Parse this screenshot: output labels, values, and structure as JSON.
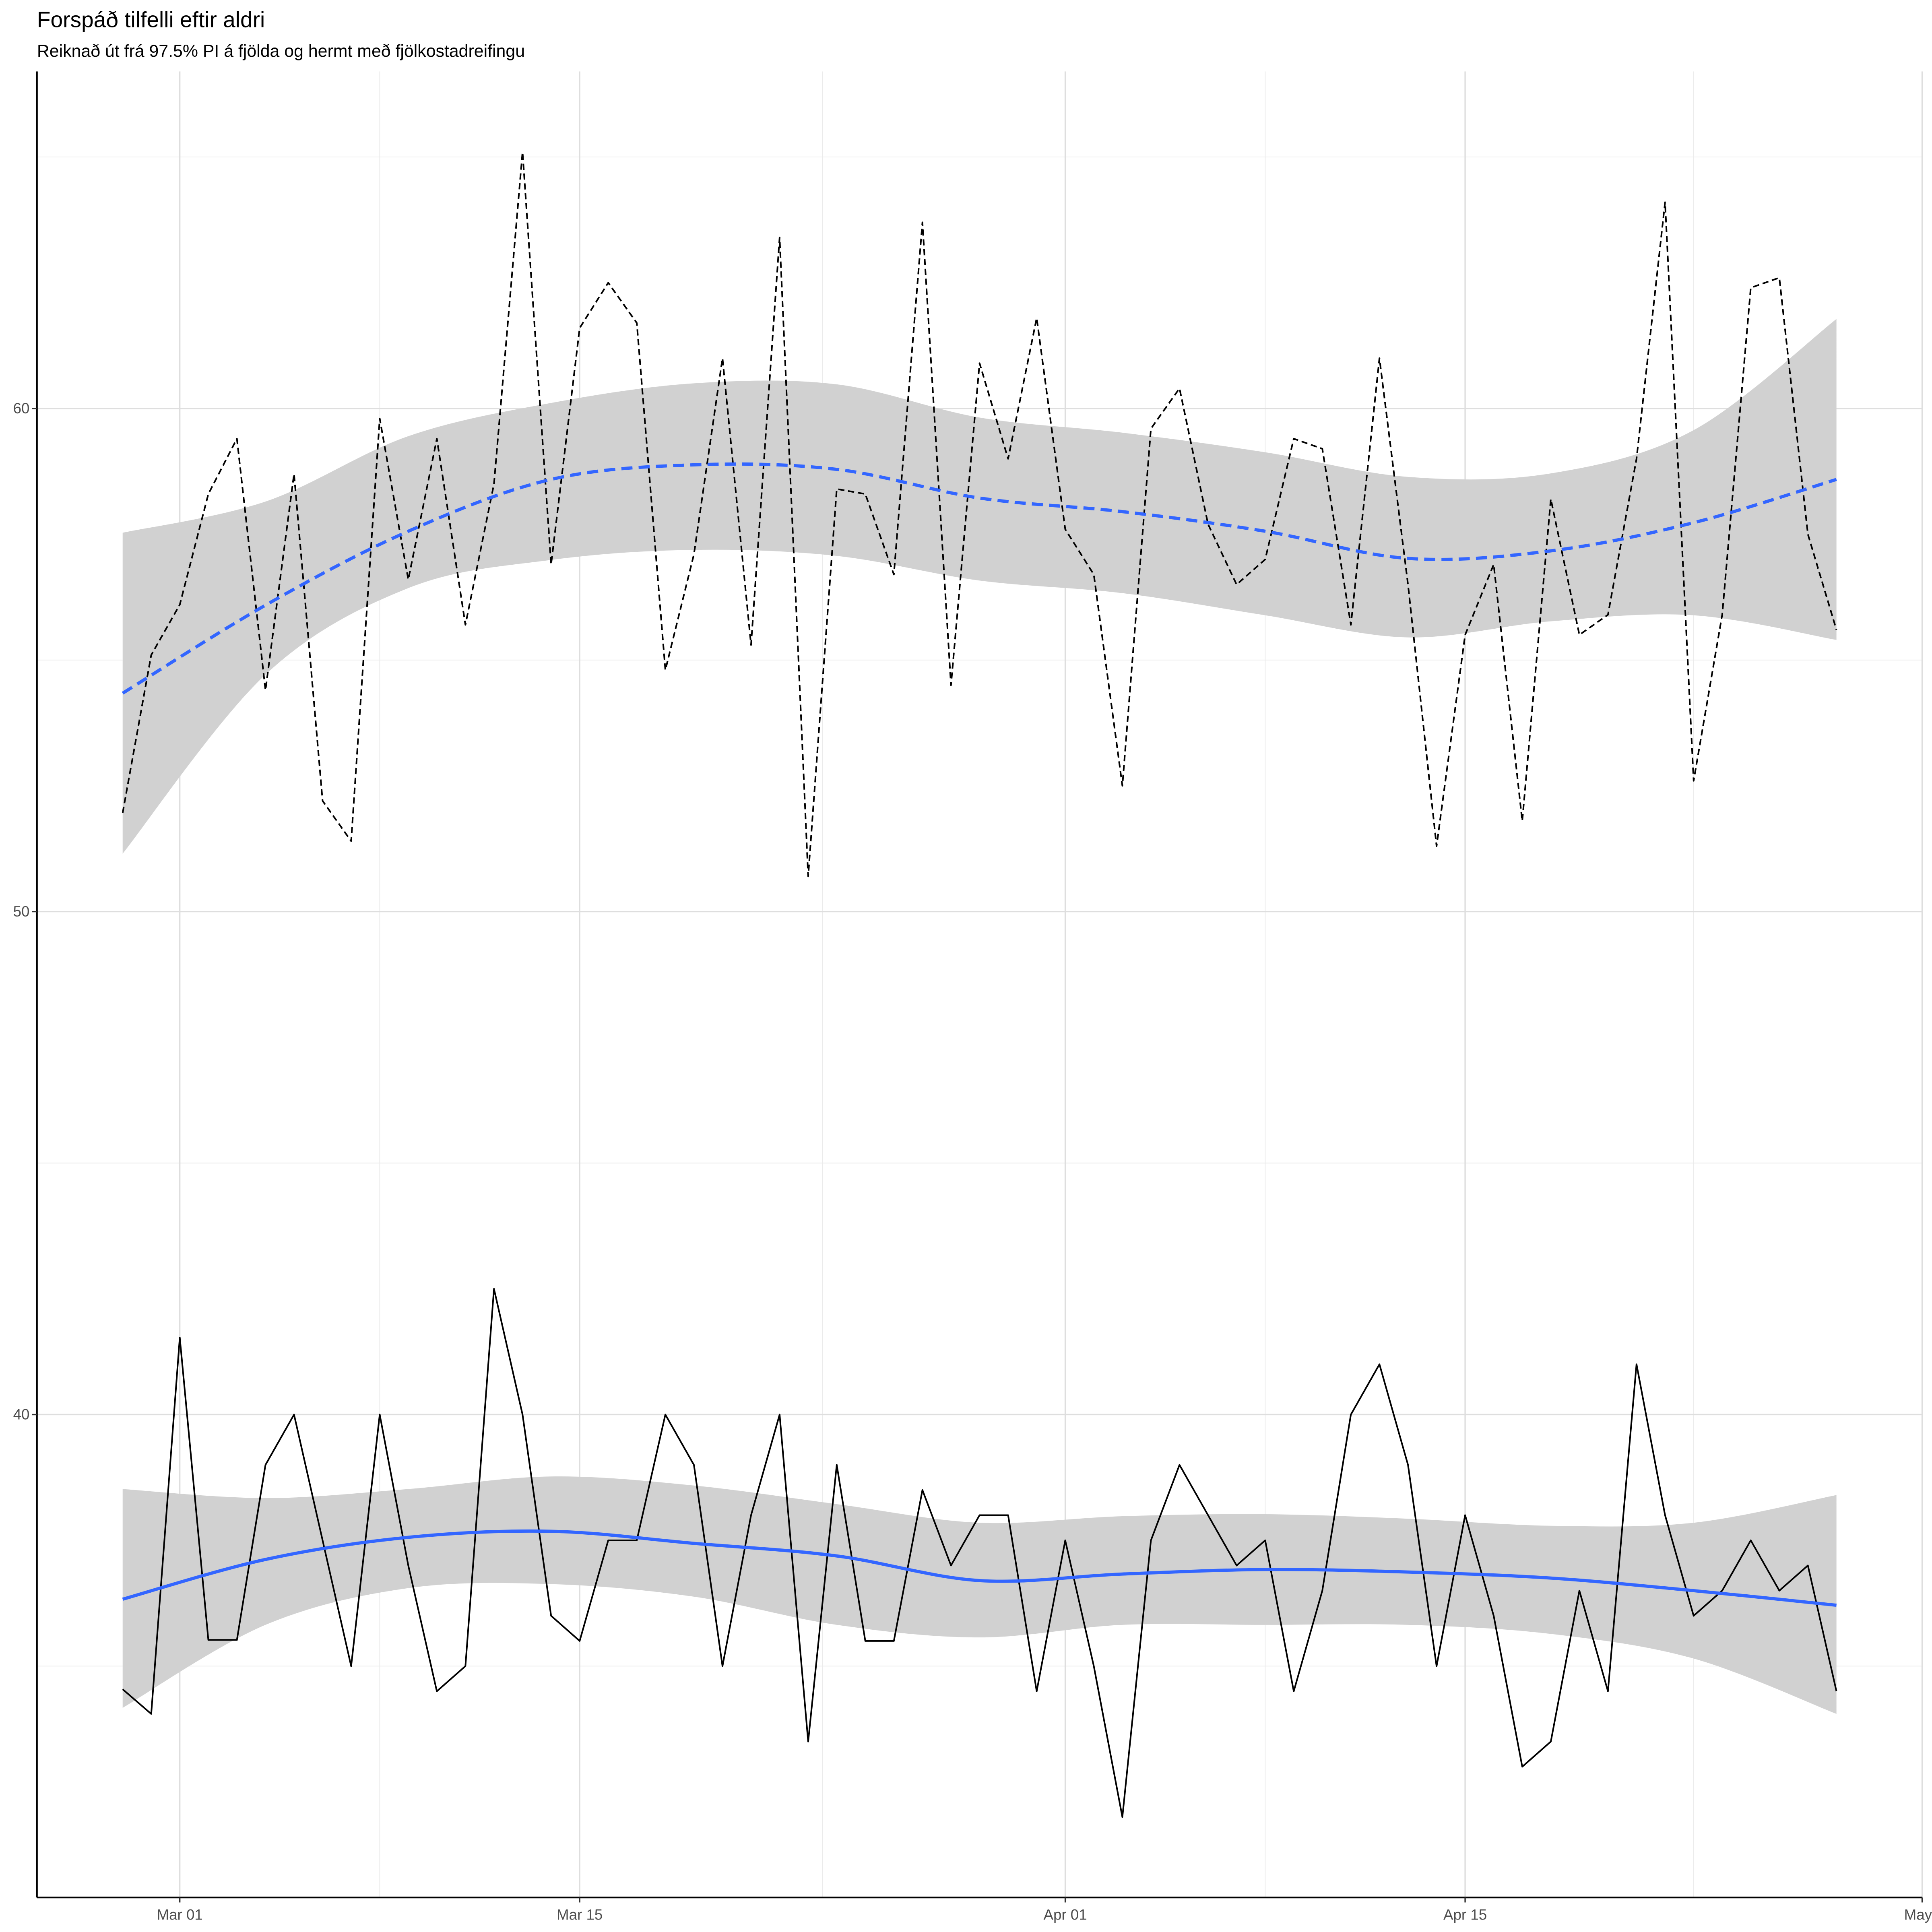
{
  "chart_data": {
    "type": "line",
    "title": "Forspáð tilfelli eftir aldri",
    "subtitle": "Reiknað út frá 97.5% PI á fjölda og hermt með fjölkostadreifingu",
    "xlim": [
      "02-24",
      "05-01"
    ],
    "xticks": [
      {
        "value": "03-01",
        "label": "Mar 01"
      },
      {
        "value": "03-15",
        "label": "Mar 15"
      },
      {
        "value": "04-01",
        "label": "Apr 01"
      },
      {
        "value": "04-15",
        "label": "Apr 15"
      },
      {
        "value": "05-01",
        "label": "May"
      }
    ],
    "ylim": [
      30.4,
      66.7
    ],
    "yticks": [
      40,
      50,
      60
    ],
    "grid": true,
    "series": [
      {
        "color": "#000000",
        "dash": true,
        "x": [
          "02-27",
          "02-28",
          "03-01",
          "03-02",
          "03-03",
          "03-04",
          "03-05",
          "03-06",
          "03-07",
          "03-08",
          "03-09",
          "03-10",
          "03-11",
          "03-12",
          "03-13",
          "03-14",
          "03-15",
          "03-16",
          "03-17",
          "03-18",
          "03-19",
          "03-20",
          "03-21",
          "03-22",
          "03-23",
          "03-24",
          "03-25",
          "03-26",
          "03-27",
          "03-28",
          "03-29",
          "03-30",
          "03-31",
          "04-01",
          "04-02",
          "04-03",
          "04-04",
          "04-05",
          "04-06",
          "04-07",
          "04-08",
          "04-09",
          "04-10",
          "04-11",
          "04-12",
          "04-13",
          "04-14",
          "04-15",
          "04-16",
          "04-17",
          "04-18",
          "04-19",
          "04-20",
          "04-21",
          "04-22",
          "04-23",
          "04-24",
          "04-25",
          "04-26",
          "04-27",
          "04-28"
        ],
        "values": [
          51.96,
          55.1,
          56.1,
          58.3,
          59.4,
          54.4,
          58.7,
          52.2,
          51.4,
          59.8,
          56.6,
          59.4,
          55.7,
          58.5,
          65.1,
          56.9,
          61.6,
          62.5,
          61.7,
          54.8,
          57.1,
          61.0,
          55.3,
          63.4,
          50.7,
          58.4,
          58.3,
          56.7,
          63.7,
          54.5,
          60.9,
          59.0,
          61.8,
          57.6,
          56.7,
          52.5,
          59.6,
          60.4,
          57.7,
          56.5,
          57.0,
          59.4,
          59.2,
          55.7,
          61.0,
          56.5,
          51.3,
          55.5,
          56.9,
          51.8,
          58.2,
          55.5,
          55.9,
          59.0,
          64.1,
          52.6,
          55.9,
          62.4,
          62.6,
          57.5,
          55.6
        ]
      },
      {
        "color": "#000000",
        "dash": false,
        "x": [
          "02-27",
          "02-28",
          "03-01",
          "03-02",
          "03-03",
          "03-04",
          "03-05",
          "03-06",
          "03-07",
          "03-08",
          "03-09",
          "03-10",
          "03-11",
          "03-12",
          "03-13",
          "03-14",
          "03-15",
          "03-16",
          "03-17",
          "03-18",
          "03-19",
          "03-20",
          "03-21",
          "03-22",
          "03-23",
          "03-24",
          "03-25",
          "03-26",
          "03-27",
          "03-28",
          "03-29",
          "03-30",
          "03-31",
          "04-01",
          "04-02",
          "04-03",
          "04-04",
          "04-05",
          "04-06",
          "04-07",
          "04-08",
          "04-09",
          "04-10",
          "04-11",
          "04-12",
          "04-13",
          "04-14",
          "04-15",
          "04-16",
          "04-17",
          "04-18",
          "04-19",
          "04-20",
          "04-21",
          "04-22",
          "04-23",
          "04-24",
          "04-25",
          "04-26",
          "04-27",
          "04-28"
        ],
        "values": [
          34.54,
          34.05,
          41.53,
          35.52,
          35.52,
          39.0,
          40.0,
          37.5,
          35.0,
          40.0,
          37.0,
          34.5,
          35.0,
          42.5,
          40.0,
          36.0,
          35.5,
          37.5,
          37.5,
          40.0,
          39.0,
          35.0,
          38.0,
          40.0,
          33.5,
          39.0,
          35.5,
          35.5,
          38.5,
          37.0,
          38.0,
          38.0,
          34.5,
          37.5,
          35.0,
          32.0,
          37.5,
          39.0,
          38.0,
          37.0,
          37.5,
          34.5,
          36.5,
          40.0,
          41.0,
          39.0,
          35.0,
          38.0,
          36.0,
          33.0,
          33.5,
          36.5,
          34.5,
          41.0,
          38.0,
          36.0,
          36.5,
          37.5,
          36.5,
          37.0,
          34.5
        ]
      },
      {
        "color": "#3366ff",
        "dash": true,
        "band_color": "#d1d1d1",
        "x": [
          "02-27",
          "03-04",
          "03-09",
          "03-14",
          "03-19",
          "03-24",
          "03-29",
          "04-03",
          "04-08",
          "04-13",
          "04-18",
          "04-23",
          "04-28"
        ],
        "values": [
          54.34,
          56.09,
          57.56,
          58.59,
          58.88,
          58.79,
          58.22,
          57.95,
          57.56,
          57.02,
          57.17,
          57.73,
          58.59
        ],
        "lower": [
          51.15,
          54.71,
          56.43,
          56.99,
          57.19,
          57.07,
          56.58,
          56.33,
          55.89,
          55.45,
          55.77,
          55.89,
          55.4
        ],
        "upper": [
          57.53,
          58.15,
          59.45,
          60.11,
          60.5,
          60.48,
          59.82,
          59.52,
          59.13,
          58.64,
          58.71,
          59.57,
          61.78
        ]
      },
      {
        "color": "#3366ff",
        "dash": false,
        "band_color": "#d1d1d1",
        "x": [
          "02-27",
          "03-04",
          "03-09",
          "03-14",
          "03-19",
          "03-24",
          "03-29",
          "04-03",
          "04-08",
          "04-13",
          "04-18",
          "04-23",
          "04-28"
        ],
        "values": [
          36.33,
          37.12,
          37.56,
          37.68,
          37.44,
          37.19,
          36.7,
          36.83,
          36.92,
          36.87,
          36.75,
          36.5,
          36.21
        ],
        "lower": [
          34.17,
          35.82,
          36.55,
          36.63,
          36.38,
          35.82,
          35.57,
          35.82,
          35.82,
          35.82,
          35.64,
          35.15,
          34.05
        ],
        "upper": [
          38.52,
          38.34,
          38.52,
          38.77,
          38.59,
          38.22,
          37.85,
          37.98,
          38.02,
          37.93,
          37.79,
          37.85,
          38.4
        ]
      }
    ]
  }
}
